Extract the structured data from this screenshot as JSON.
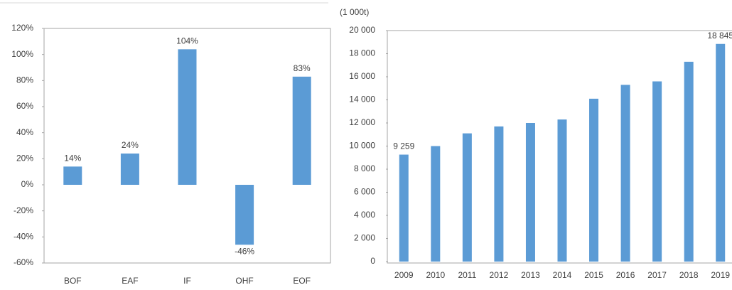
{
  "chart_data": [
    {
      "type": "bar",
      "categories": [
        "BOF",
        "EAF",
        "IF",
        "OHF",
        "EOF"
      ],
      "values": [
        14,
        24,
        104,
        -46,
        83
      ],
      "value_labels": [
        "14%",
        "24%",
        "104%",
        "-46%",
        "83%"
      ],
      "color": "#5b9bd5",
      "ylim": [
        -60,
        120
      ],
      "yticks": [
        {
          "value": -60,
          "label": "-60%"
        },
        {
          "value": -40,
          "label": "-40%"
        },
        {
          "value": -20,
          "label": "-20%"
        },
        {
          "value": 0,
          "label": "0%"
        },
        {
          "value": 20,
          "label": "20%"
        },
        {
          "value": 40,
          "label": "40%"
        },
        {
          "value": 60,
          "label": "60%"
        },
        {
          "value": 80,
          "label": "80%"
        },
        {
          "value": 100,
          "label": "100%"
        },
        {
          "value": 120,
          "label": "120%"
        }
      ],
      "grid": false
    },
    {
      "type": "bar",
      "y_label": "(1 000t)",
      "categories": [
        "2009",
        "2010",
        "2011",
        "2012",
        "2013",
        "2014",
        "2015",
        "2016",
        "2017",
        "2018",
        "2019"
      ],
      "values": [
        9259,
        10000,
        11100,
        11700,
        12000,
        12300,
        14100,
        15300,
        15600,
        17300,
        18845
      ],
      "value_labels": [
        "9 259",
        null,
        null,
        null,
        null,
        null,
        null,
        null,
        null,
        null,
        "18 845"
      ],
      "color": "#5b9bd5",
      "ylim": [
        0,
        20000
      ],
      "yticks": [
        0,
        {
          "value": 2000,
          "label": "2 000"
        },
        {
          "value": 4000,
          "label": "4 000"
        },
        {
          "value": 6000,
          "label": "6 000"
        },
        {
          "value": 8000,
          "label": "8 000"
        },
        {
          "value": 10000,
          "label": "10 000"
        },
        {
          "value": 12000,
          "label": "12 000"
        },
        {
          "value": 14000,
          "label": "14 000"
        },
        {
          "value": 16000,
          "label": "16 000"
        },
        {
          "value": 18000,
          "label": "18 000"
        },
        {
          "value": 20000,
          "label": "20 000"
        }
      ],
      "grid": false
    }
  ]
}
